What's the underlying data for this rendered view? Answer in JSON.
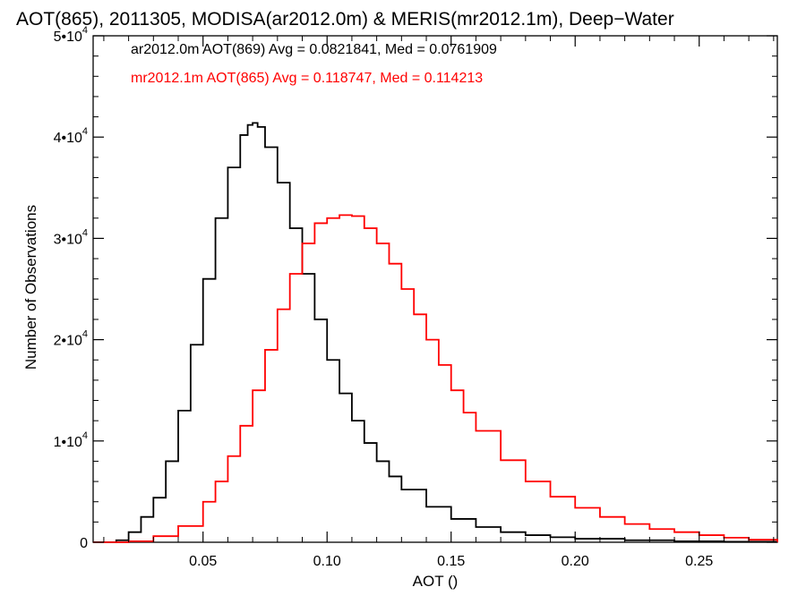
{
  "chart_data": {
    "type": "line",
    "title": "AOT(865), 2011305, MODISA(ar2012.0m) & MERIS(mr2012.1m), Deep−Water",
    "xlabel": "AOT ()",
    "ylabel": "Number of Observations",
    "xlim": [
      0.0057,
      0.2815
    ],
    "ylim": [
      0,
      50000
    ],
    "grid": false,
    "legend_placement": "top-left",
    "x_ticks": [
      {
        "value": 0.05,
        "label": "0.05"
      },
      {
        "value": 0.1,
        "label": "0.10"
      },
      {
        "value": 0.15,
        "label": "0.15"
      },
      {
        "value": 0.2,
        "label": "0.20"
      },
      {
        "value": 0.25,
        "label": "0.25"
      }
    ],
    "y_ticks": [
      {
        "value": 0,
        "mant": "0",
        "exp": ""
      },
      {
        "value": 10000,
        "mant": "1•10",
        "exp": "4"
      },
      {
        "value": 20000,
        "mant": "2•10",
        "exp": "4"
      },
      {
        "value": 30000,
        "mant": "3•10",
        "exp": "4"
      },
      {
        "value": 40000,
        "mant": "4•10",
        "exp": "4"
      },
      {
        "value": 50000,
        "mant": "5•10",
        "exp": "4"
      }
    ],
    "series": [
      {
        "name": "ar2012.0m AOT(869) Avg = 0.0821841, Med = 0.0761909",
        "color": "#000000",
        "x": [
          0.0057,
          0.01,
          0.015,
          0.02,
          0.025,
          0.03,
          0.035,
          0.04,
          0.045,
          0.05,
          0.055,
          0.06,
          0.065,
          0.068,
          0.07,
          0.072,
          0.075,
          0.08,
          0.085,
          0.09,
          0.095,
          0.1,
          0.105,
          0.11,
          0.115,
          0.12,
          0.125,
          0.13,
          0.14,
          0.15,
          0.16,
          0.17,
          0.18,
          0.19,
          0.2,
          0.22,
          0.24,
          0.26,
          0.2815
        ],
        "y": [
          0,
          0,
          200,
          1000,
          2500,
          4400,
          8000,
          13000,
          19500,
          26000,
          32000,
          37000,
          40200,
          41200,
          41400,
          41000,
          39000,
          35500,
          31000,
          26500,
          22000,
          18000,
          14700,
          12000,
          9800,
          8000,
          6500,
          5200,
          3500,
          2300,
          1500,
          1000,
          700,
          500,
          350,
          200,
          100,
          50,
          0
        ]
      },
      {
        "name": "mr2012.1m AOT(865) Avg = 0.118747, Med = 0.114213",
        "color": "#ff0000",
        "x": [
          0.0057,
          0.01,
          0.02,
          0.03,
          0.04,
          0.05,
          0.055,
          0.06,
          0.065,
          0.07,
          0.075,
          0.08,
          0.085,
          0.09,
          0.095,
          0.1,
          0.105,
          0.11,
          0.115,
          0.12,
          0.125,
          0.13,
          0.135,
          0.14,
          0.145,
          0.15,
          0.155,
          0.16,
          0.17,
          0.18,
          0.19,
          0.2,
          0.21,
          0.22,
          0.23,
          0.24,
          0.25,
          0.26,
          0.27,
          0.2815
        ],
        "y": [
          0,
          0,
          100,
          600,
          1600,
          4000,
          6000,
          8500,
          11500,
          15000,
          19000,
          23000,
          26500,
          29500,
          31500,
          32000,
          32300,
          32200,
          31000,
          29500,
          27500,
          25000,
          22500,
          20000,
          17500,
          15000,
          12800,
          11000,
          8100,
          6000,
          4500,
          3400,
          2500,
          1800,
          1300,
          1000,
          700,
          450,
          250,
          0
        ]
      }
    ]
  }
}
